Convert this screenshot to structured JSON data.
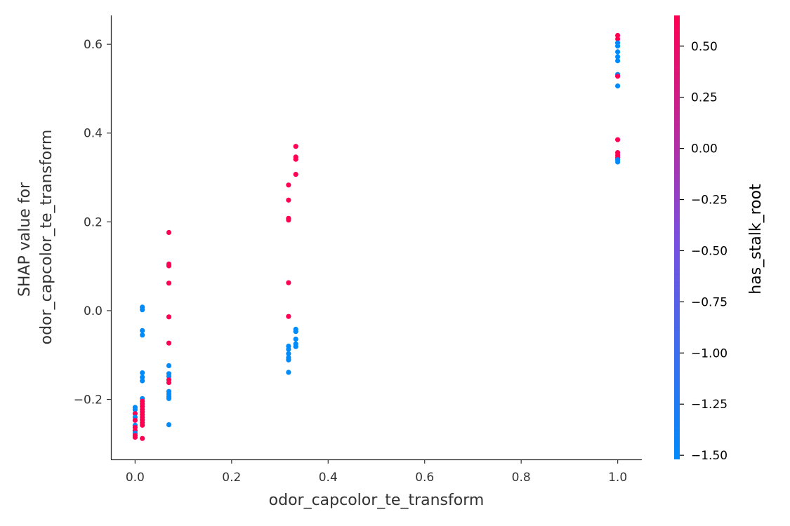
{
  "chart_data": {
    "type": "scatter",
    "xlabel": "odor_capcolor_te_transform",
    "ylabel_lines": [
      "SHAP value for",
      "odor_capcolor_te_transform"
    ],
    "xlim": [
      -0.05,
      1.05
    ],
    "ylim": [
      -0.335,
      0.665
    ],
    "x_ticks": [
      0.0,
      0.2,
      0.4,
      0.6,
      0.8,
      1.0
    ],
    "x_tick_labels": [
      "0.0",
      "0.2",
      "0.4",
      "0.6",
      "0.8",
      "1.0"
    ],
    "y_ticks": [
      -0.2,
      0.0,
      0.2,
      0.4,
      0.6
    ],
    "y_tick_labels": [
      "−0.2",
      "0.0",
      "0.2",
      "0.4",
      "0.6"
    ],
    "colorbar": {
      "label": "has_stalk_root",
      "range": [
        -1.52,
        0.65
      ],
      "low_color": "#008afb",
      "mid_color": "#7b4ee0",
      "high_color": "#ff0052",
      "ticks": [
        0.5,
        0.25,
        0.0,
        -0.25,
        -0.5,
        -0.75,
        -1.0,
        -1.25,
        -1.5
      ],
      "tick_labels": [
        "0.50",
        "0.25",
        "0.00",
        "−0.25",
        "−0.50",
        "−0.75",
        "−1.00",
        "−1.25",
        "−1.50"
      ]
    },
    "colors": {
      "high": "#ff0052",
      "low": "#008bfb"
    },
    "points": [
      {
        "x": 0.0,
        "y": -0.218,
        "c": "low"
      },
      {
        "x": 0.0,
        "y": -0.223,
        "c": "low"
      },
      {
        "x": 0.0,
        "y": -0.232,
        "c": "high"
      },
      {
        "x": 0.0,
        "y": -0.24,
        "c": "low"
      },
      {
        "x": 0.0,
        "y": -0.247,
        "c": "high"
      },
      {
        "x": 0.0,
        "y": -0.258,
        "c": "low"
      },
      {
        "x": 0.0,
        "y": -0.263,
        "c": "high"
      },
      {
        "x": 0.0,
        "y": -0.27,
        "c": "high"
      },
      {
        "x": 0.0,
        "y": -0.276,
        "c": "low"
      },
      {
        "x": 0.0,
        "y": -0.281,
        "c": "high"
      },
      {
        "x": 0.0,
        "y": -0.285,
        "c": "high"
      },
      {
        "x": 0.015,
        "y": 0.008,
        "c": "low"
      },
      {
        "x": 0.015,
        "y": 0.002,
        "c": "low"
      },
      {
        "x": 0.015,
        "y": -0.045,
        "c": "low"
      },
      {
        "x": 0.015,
        "y": -0.055,
        "c": "low"
      },
      {
        "x": 0.015,
        "y": -0.14,
        "c": "low"
      },
      {
        "x": 0.015,
        "y": -0.15,
        "c": "low"
      },
      {
        "x": 0.015,
        "y": -0.158,
        "c": "low"
      },
      {
        "x": 0.015,
        "y": -0.198,
        "c": "low"
      },
      {
        "x": 0.015,
        "y": -0.204,
        "c": "high"
      },
      {
        "x": 0.015,
        "y": -0.21,
        "c": "high"
      },
      {
        "x": 0.015,
        "y": -0.216,
        "c": "high"
      },
      {
        "x": 0.015,
        "y": -0.222,
        "c": "high"
      },
      {
        "x": 0.015,
        "y": -0.228,
        "c": "high"
      },
      {
        "x": 0.015,
        "y": -0.234,
        "c": "high"
      },
      {
        "x": 0.015,
        "y": -0.24,
        "c": "high"
      },
      {
        "x": 0.015,
        "y": -0.246,
        "c": "high"
      },
      {
        "x": 0.015,
        "y": -0.252,
        "c": "high"
      },
      {
        "x": 0.015,
        "y": -0.258,
        "c": "high"
      },
      {
        "x": 0.015,
        "y": -0.288,
        "c": "high"
      },
      {
        "x": 0.07,
        "y": 0.176,
        "c": "high"
      },
      {
        "x": 0.07,
        "y": 0.105,
        "c": "high"
      },
      {
        "x": 0.07,
        "y": 0.101,
        "c": "high"
      },
      {
        "x": 0.07,
        "y": 0.062,
        "c": "high"
      },
      {
        "x": 0.07,
        "y": -0.014,
        "c": "high"
      },
      {
        "x": 0.07,
        "y": -0.073,
        "c": "high"
      },
      {
        "x": 0.07,
        "y": -0.124,
        "c": "low"
      },
      {
        "x": 0.07,
        "y": -0.142,
        "c": "low"
      },
      {
        "x": 0.07,
        "y": -0.148,
        "c": "low"
      },
      {
        "x": 0.07,
        "y": -0.156,
        "c": "high"
      },
      {
        "x": 0.07,
        "y": -0.162,
        "c": "high"
      },
      {
        "x": 0.07,
        "y": -0.182,
        "c": "low"
      },
      {
        "x": 0.07,
        "y": -0.188,
        "c": "low"
      },
      {
        "x": 0.07,
        "y": -0.194,
        "c": "low"
      },
      {
        "x": 0.07,
        "y": -0.198,
        "c": "low"
      },
      {
        "x": 0.07,
        "y": -0.257,
        "c": "low"
      },
      {
        "x": 0.318,
        "y": 0.283,
        "c": "high"
      },
      {
        "x": 0.318,
        "y": 0.249,
        "c": "high"
      },
      {
        "x": 0.318,
        "y": 0.208,
        "c": "high"
      },
      {
        "x": 0.318,
        "y": 0.204,
        "c": "high"
      },
      {
        "x": 0.318,
        "y": 0.063,
        "c": "high"
      },
      {
        "x": 0.318,
        "y": -0.013,
        "c": "high"
      },
      {
        "x": 0.318,
        "y": -0.08,
        "c": "low"
      },
      {
        "x": 0.318,
        "y": -0.087,
        "c": "low"
      },
      {
        "x": 0.318,
        "y": -0.097,
        "c": "low"
      },
      {
        "x": 0.318,
        "y": -0.106,
        "c": "low"
      },
      {
        "x": 0.318,
        "y": -0.111,
        "c": "low"
      },
      {
        "x": 0.318,
        "y": -0.139,
        "c": "low"
      },
      {
        "x": 0.333,
        "y": 0.37,
        "c": "high"
      },
      {
        "x": 0.333,
        "y": 0.346,
        "c": "high"
      },
      {
        "x": 0.333,
        "y": 0.341,
        "c": "high"
      },
      {
        "x": 0.333,
        "y": 0.307,
        "c": "high"
      },
      {
        "x": 0.333,
        "y": -0.042,
        "c": "low"
      },
      {
        "x": 0.333,
        "y": -0.047,
        "c": "low"
      },
      {
        "x": 0.333,
        "y": -0.064,
        "c": "low"
      },
      {
        "x": 0.333,
        "y": -0.075,
        "c": "low"
      },
      {
        "x": 0.333,
        "y": -0.081,
        "c": "low"
      },
      {
        "x": 1.0,
        "y": 0.62,
        "c": "high"
      },
      {
        "x": 1.0,
        "y": 0.612,
        "c": "high"
      },
      {
        "x": 1.0,
        "y": 0.603,
        "c": "low"
      },
      {
        "x": 1.0,
        "y": 0.596,
        "c": "low"
      },
      {
        "x": 1.0,
        "y": 0.583,
        "c": "low"
      },
      {
        "x": 1.0,
        "y": 0.572,
        "c": "low"
      },
      {
        "x": 1.0,
        "y": 0.563,
        "c": "low"
      },
      {
        "x": 1.0,
        "y": 0.532,
        "c": "low"
      },
      {
        "x": 1.0,
        "y": 0.528,
        "c": "high"
      },
      {
        "x": 1.0,
        "y": 0.506,
        "c": "low"
      },
      {
        "x": 1.0,
        "y": 0.385,
        "c": "high"
      },
      {
        "x": 1.0,
        "y": 0.356,
        "c": "high"
      },
      {
        "x": 1.0,
        "y": 0.35,
        "c": "high"
      },
      {
        "x": 1.0,
        "y": 0.345,
        "c": "high"
      },
      {
        "x": 1.0,
        "y": 0.34,
        "c": "low"
      },
      {
        "x": 1.0,
        "y": 0.335,
        "c": "low"
      }
    ]
  }
}
